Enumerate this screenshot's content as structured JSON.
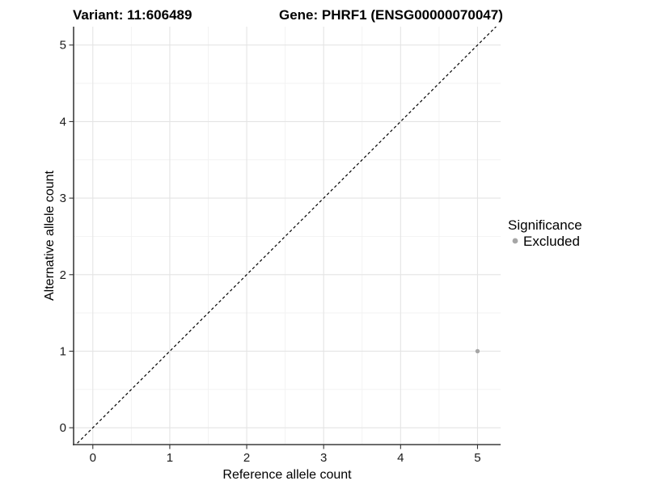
{
  "header": {
    "variant_title": "Variant: 11:606489",
    "gene_title": "Gene: PHRF1 (ENSG00000070047)"
  },
  "legend": {
    "title": "Significance",
    "entries": [
      {
        "label": "Excluded",
        "color": "#a6a6a6"
      }
    ]
  },
  "chart_data": {
    "type": "scatter",
    "title": "Variant: 11:606489   Gene: PHRF1 (ENSG00000070047)",
    "xlabel": "Reference allele count",
    "ylabel": "Alternative allele count",
    "xlim": [
      -0.25,
      5.3
    ],
    "ylim": [
      -0.22,
      5.24
    ],
    "x_ticks": [
      0,
      1,
      2,
      3,
      4,
      5
    ],
    "y_ticks": [
      0,
      1,
      2,
      3,
      4,
      5
    ],
    "x_minor_ticks": [
      0.5,
      1.5,
      2.5,
      3.5,
      4.5
    ],
    "y_minor_ticks": [
      0.5,
      1.5,
      2.5,
      3.5,
      4.5
    ],
    "grid": true,
    "legend_position": "right",
    "series": [
      {
        "name": "Excluded",
        "color": "#a6a6a6",
        "points": [
          {
            "x": 5,
            "y": 1
          }
        ]
      }
    ],
    "reference_line": {
      "type": "identity y=x",
      "style": "dashed",
      "color": "#000000"
    },
    "colors": {
      "grid_major": "#e4e4e4",
      "grid_minor": "#f2f2f2",
      "axis_line": "#3c3c3c",
      "tick_mark": "#333333"
    }
  }
}
